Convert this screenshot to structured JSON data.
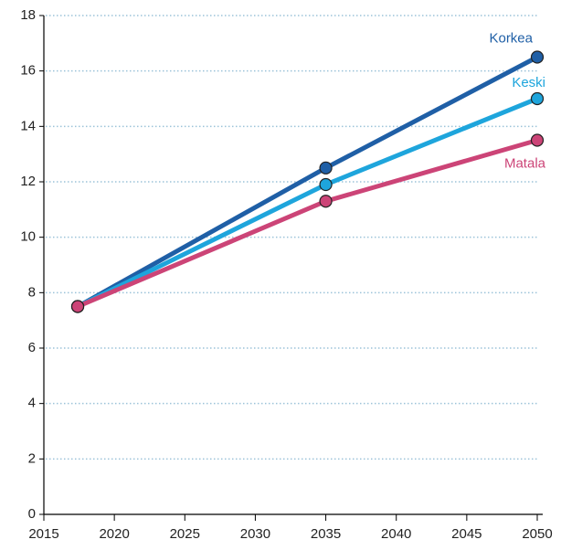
{
  "chart_data": {
    "type": "line",
    "x": [
      2017.4,
      2035,
      2050
    ],
    "series": [
      {
        "name": "Korkea",
        "color": "#1f5fa6",
        "values": [
          7.5,
          12.5,
          16.5
        ]
      },
      {
        "name": "Keski",
        "color": "#1ea5dc",
        "values": [
          7.5,
          11.9,
          15.0
        ]
      },
      {
        "name": "Matala",
        "color": "#cc4477",
        "values": [
          7.5,
          11.3,
          13.5
        ]
      }
    ],
    "xlim": [
      2015,
      2050
    ],
    "xticks": [
      2015,
      2020,
      2025,
      2030,
      2035,
      2040,
      2045,
      2050
    ],
    "ylim": [
      0,
      18
    ],
    "yticks": [
      0,
      2,
      4,
      6,
      8,
      10,
      12,
      14,
      16,
      18
    ],
    "grid": true
  }
}
